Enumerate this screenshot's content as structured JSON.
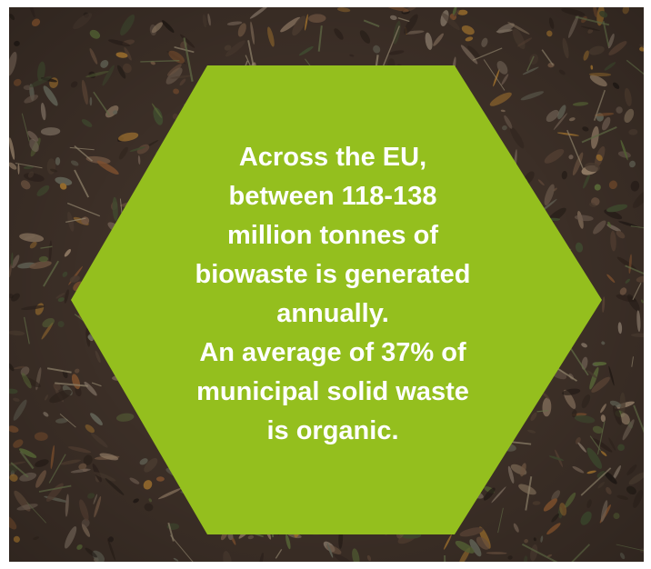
{
  "text": {
    "lines": [
      "Across the EU,",
      "between 118-138",
      "million tonnes of",
      "biowaste is generated",
      "annually.",
      "An average of 37% of",
      "municipal solid waste",
      "is organic."
    ]
  }
}
